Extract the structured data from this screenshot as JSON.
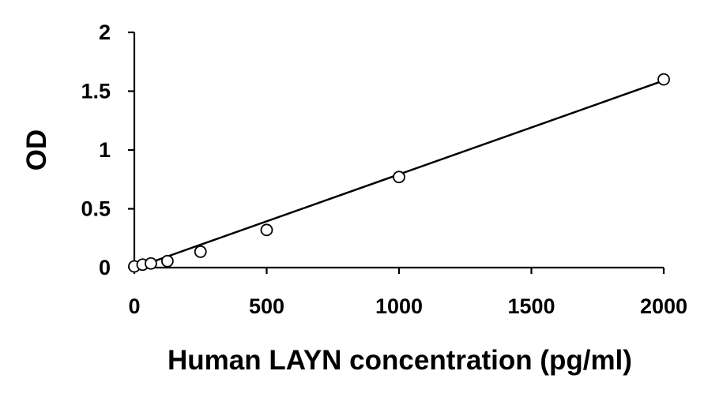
{
  "chart_data": {
    "type": "scatter",
    "title": "",
    "xlabel": "Human LAYN concentration (pg/ml)",
    "ylabel": "OD",
    "xlim": [
      0,
      2000
    ],
    "ylim": [
      0,
      2
    ],
    "x_ticks": [
      0,
      500,
      1000,
      1500,
      2000
    ],
    "x_tick_labels": [
      "0",
      "500",
      "1000",
      "1500",
      "2000"
    ],
    "y_ticks": [
      0,
      0.5,
      1,
      1.5,
      2
    ],
    "y_tick_labels": [
      "0",
      "0.5",
      "1",
      "1.5",
      "2"
    ],
    "grid": false,
    "legend": "none",
    "series": [
      {
        "marker": "open-circle",
        "x": [
          0,
          31.25,
          62.5,
          125,
          250,
          500,
          1000,
          2000
        ],
        "y": [
          0.01,
          0.025,
          0.035,
          0.055,
          0.135,
          0.32,
          0.77,
          1.6
        ]
      }
    ],
    "trendline": {
      "type": "linear",
      "x": [
        0,
        2000
      ],
      "y": [
        -0.005,
        1.59
      ]
    },
    "colors": {
      "axis": "#000000",
      "marker_stroke": "#000000",
      "marker_fill": "#ffffff",
      "line": "#000000"
    }
  }
}
